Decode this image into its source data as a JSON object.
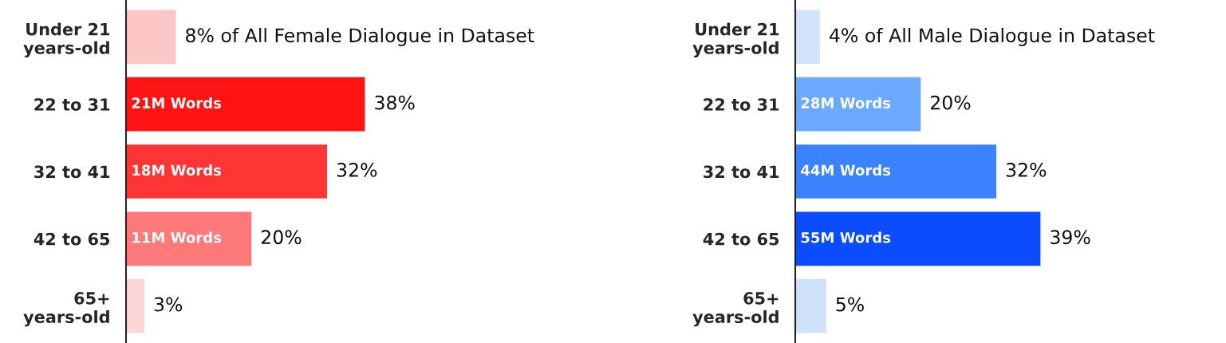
{
  "chart_data": [
    {
      "type": "bar",
      "orientation": "horizontal",
      "tick_labels": "y",
      "grid": false,
      "legend": false,
      "categories": [
        "Under 21\nyears-old",
        "22 to 31",
        "32 to 41",
        "42 to 65",
        "65+\nyears-old"
      ],
      "values": [
        8,
        38,
        32,
        20,
        3
      ],
      "colors": [
        "#fcc6c6",
        "#fe1414",
        "#fe3535",
        "#fe7a7a",
        "#fdd7d7"
      ],
      "value_labels": [
        "8% of All Female Dialogue in Dataset",
        "38%",
        "32%",
        "20%",
        "3%"
      ],
      "annotations": [
        {
          "text": "21M Words",
          "y": "22 to 31"
        },
        {
          "text": "18M Words",
          "y": "32 to 41"
        },
        {
          "text": "11M Words",
          "y": "42 to 65"
        }
      ]
    },
    {
      "type": "bar",
      "orientation": "horizontal",
      "tick_labels": "y",
      "grid": false,
      "legend": false,
      "categories": [
        "Under 21\nyears-old",
        "22 to 31",
        "32 to 41",
        "42 to 65",
        "65+\nyears-old"
      ],
      "values": [
        4,
        20,
        32,
        39,
        5
      ],
      "colors": [
        "#d2e3fc",
        "#6aa9fe",
        "#3b82fe",
        "#0a4cfe",
        "#cfe0fb"
      ],
      "value_labels": [
        "4% of All Male Dialogue in Dataset",
        "20%",
        "32%",
        "39%",
        "5%"
      ],
      "annotations": [
        {
          "text": "28M Words",
          "y": "22 to 31"
        },
        {
          "text": "44M Words",
          "y": "32 to 41"
        },
        {
          "text": "55M Words",
          "y": "42 to 65"
        }
      ]
    }
  ]
}
